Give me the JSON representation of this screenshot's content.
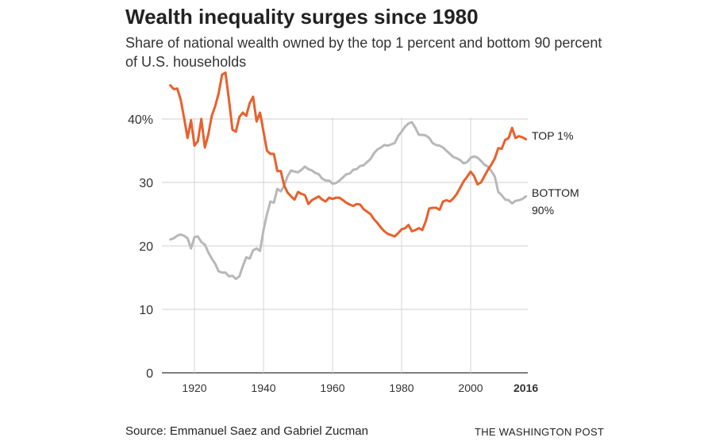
{
  "title": "Wealth inequality surges since 1980",
  "subtitle": "Share of national wealth owned by the top 1 percent and bottom 90 percent of U.S. households",
  "source": "Source: Emmanuel Saez and Gabriel Zucman",
  "credit": "THE WASHINGTON POST",
  "chart_data": {
    "type": "line",
    "title": "Wealth inequality surges since 1980",
    "xlabel": "",
    "ylabel": "",
    "xlim": [
      1913,
      2016
    ],
    "ylim": [
      0,
      40
    ],
    "x_ticks": [
      {
        "value": 1920,
        "label": "1920",
        "bold": false
      },
      {
        "value": 1940,
        "label": "1940",
        "bold": false
      },
      {
        "value": 1960,
        "label": "1960",
        "bold": false
      },
      {
        "value": 1980,
        "label": "1980",
        "bold": false
      },
      {
        "value": 2000,
        "label": "2000",
        "bold": false
      },
      {
        "value": 2016,
        "label": "2016",
        "bold": true
      }
    ],
    "y_ticks": [
      {
        "value": 0,
        "label": "0"
      },
      {
        "value": 10,
        "label": "10"
      },
      {
        "value": 20,
        "label": "20"
      },
      {
        "value": 30,
        "label": "30"
      },
      {
        "value": 40,
        "label": "40%"
      }
    ],
    "series": [
      {
        "name": "TOP 1%",
        "label_lines": [
          "TOP 1%"
        ],
        "color": "#e8602c",
        "x": [
          1913,
          1914,
          1915,
          1916,
          1917,
          1918,
          1919,
          1920,
          1921,
          1922,
          1923,
          1924,
          1925,
          1926,
          1927,
          1928,
          1929,
          1930,
          1931,
          1932,
          1933,
          1934,
          1935,
          1936,
          1937,
          1938,
          1939,
          1940,
          1941,
          1942,
          1943,
          1944,
          1945,
          1946,
          1947,
          1948,
          1949,
          1950,
          1951,
          1952,
          1953,
          1954,
          1955,
          1956,
          1957,
          1958,
          1959,
          1960,
          1961,
          1962,
          1963,
          1964,
          1965,
          1966,
          1967,
          1968,
          1969,
          1970,
          1971,
          1972,
          1973,
          1974,
          1975,
          1976,
          1977,
          1978,
          1979,
          1980,
          1981,
          1982,
          1983,
          1984,
          1985,
          1986,
          1987,
          1988,
          1989,
          1990,
          1991,
          1992,
          1993,
          1994,
          1995,
          1996,
          1997,
          1998,
          1999,
          2000,
          2001,
          2002,
          2003,
          2004,
          2005,
          2006,
          2007,
          2008,
          2009,
          2010,
          2011,
          2012,
          2013,
          2014,
          2015,
          2016
        ],
        "values": [
          45.3,
          44.7,
          44.8,
          43.1,
          40.2,
          37.0,
          39.8,
          35.8,
          36.5,
          40.0,
          35.5,
          37.5,
          40.5,
          42.0,
          44.0,
          47.0,
          47.3,
          43.0,
          38.3,
          38.0,
          40.3,
          41.0,
          40.5,
          42.5,
          43.5,
          39.6,
          41.0,
          38.0,
          35.0,
          34.5,
          34.5,
          31.8,
          31.8,
          29.5,
          28.4,
          27.8,
          27.3,
          28.5,
          28.2,
          28.0,
          26.6,
          27.2,
          27.5,
          27.8,
          27.3,
          27.0,
          27.6,
          27.4,
          27.6,
          27.6,
          27.2,
          26.8,
          26.5,
          26.3,
          26.6,
          26.5,
          25.8,
          25.4,
          25.0,
          24.2,
          23.6,
          22.9,
          22.3,
          21.9,
          21.7,
          21.5,
          22.0,
          22.6,
          22.8,
          23.3,
          22.3,
          22.5,
          22.8,
          22.5,
          23.9,
          25.9,
          26.0,
          26.0,
          25.7,
          27.0,
          27.2,
          27.0,
          27.5,
          28.2,
          29.2,
          30.2,
          30.9,
          31.7,
          31.0,
          29.7,
          30.0,
          31.0,
          32.0,
          32.8,
          33.8,
          35.4,
          35.3,
          36.7,
          37.0,
          38.6,
          37.0,
          37.3,
          37.1,
          36.8
        ]
      },
      {
        "name": "BOTTOM 90%",
        "label_lines": [
          "BOTTOM",
          "90%"
        ],
        "color": "#b8b8b8",
        "x": [
          1913,
          1914,
          1915,
          1916,
          1917,
          1918,
          1919,
          1920,
          1921,
          1922,
          1923,
          1924,
          1925,
          1926,
          1927,
          1928,
          1929,
          1930,
          1931,
          1932,
          1933,
          1934,
          1935,
          1936,
          1937,
          1938,
          1939,
          1940,
          1941,
          1942,
          1943,
          1944,
          1945,
          1946,
          1947,
          1948,
          1949,
          1950,
          1951,
          1952,
          1953,
          1954,
          1955,
          1956,
          1957,
          1958,
          1959,
          1960,
          1961,
          1962,
          1963,
          1964,
          1965,
          1966,
          1967,
          1968,
          1969,
          1970,
          1971,
          1972,
          1973,
          1974,
          1975,
          1976,
          1977,
          1978,
          1979,
          1980,
          1981,
          1982,
          1983,
          1984,
          1985,
          1986,
          1987,
          1988,
          1989,
          1990,
          1991,
          1992,
          1993,
          1994,
          1995,
          1996,
          1997,
          1998,
          1999,
          2000,
          2001,
          2002,
          2003,
          2004,
          2005,
          2006,
          2007,
          2008,
          2009,
          2010,
          2011,
          2012,
          2013,
          2014,
          2015,
          2016
        ],
        "values": [
          21.0,
          21.2,
          21.6,
          21.8,
          21.6,
          21.2,
          19.6,
          21.4,
          21.5,
          20.6,
          20.2,
          19.0,
          18.0,
          17.2,
          16.0,
          15.8,
          15.8,
          15.2,
          15.3,
          14.8,
          15.2,
          16.8,
          18.2,
          18.0,
          19.3,
          19.6,
          19.2,
          22.5,
          25.0,
          27.0,
          26.8,
          29.0,
          28.6,
          29.5,
          31.0,
          31.9,
          31.7,
          31.6,
          32.0,
          32.5,
          32.1,
          31.9,
          31.5,
          31.3,
          30.6,
          30.3,
          30.3,
          29.8,
          29.9,
          30.3,
          30.8,
          31.3,
          31.4,
          32.0,
          32.1,
          32.6,
          32.7,
          33.2,
          33.7,
          34.6,
          35.2,
          35.5,
          35.9,
          35.8,
          36.0,
          36.2,
          37.3,
          38.0,
          38.8,
          39.3,
          39.5,
          38.6,
          37.5,
          37.5,
          37.4,
          37.0,
          36.2,
          35.9,
          35.8,
          35.5,
          35.0,
          34.5,
          34.0,
          33.8,
          33.5,
          33.0,
          33.2,
          33.9,
          34.1,
          33.9,
          33.4,
          32.8,
          32.5,
          31.8,
          30.9,
          28.5,
          28.0,
          27.3,
          27.2,
          26.7,
          27.1,
          27.2,
          27.4,
          27.8
        ]
      }
    ]
  }
}
